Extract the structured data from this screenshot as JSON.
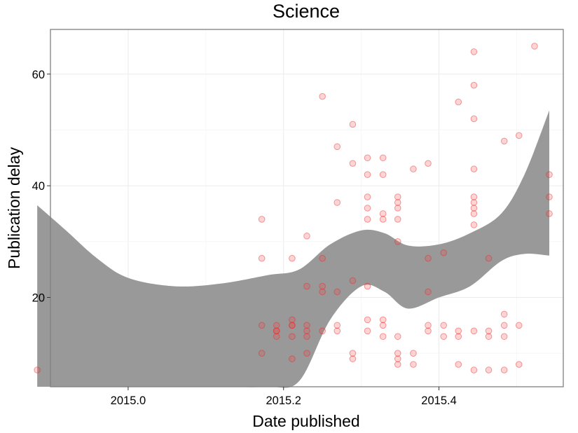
{
  "chart_data": {
    "type": "scatter",
    "title": "Science",
    "xlabel": "Date published",
    "ylabel": "Publication delay",
    "xlim": [
      2014.9,
      2015.56
    ],
    "ylim": [
      4,
      68
    ],
    "x_ticks": [
      2015.0,
      2015.2,
      2015.4
    ],
    "x_tick_labels": [
      "2015.0",
      "2015.2",
      "2015.4"
    ],
    "y_ticks": [
      20,
      40,
      60
    ],
    "y_tick_labels": [
      "20",
      "40",
      "60"
    ],
    "grid": true,
    "legend": "none",
    "colors": {
      "points": "#f8766d",
      "band": "#999999"
    },
    "points": [
      {
        "x": 2014.883,
        "y": 7
      },
      {
        "x": 2015.172,
        "y": 34
      },
      {
        "x": 2015.172,
        "y": 27
      },
      {
        "x": 2015.172,
        "y": 15
      },
      {
        "x": 2015.172,
        "y": 10
      },
      {
        "x": 2015.191,
        "y": 15
      },
      {
        "x": 2015.191,
        "y": 14
      },
      {
        "x": 2015.191,
        "y": 13
      },
      {
        "x": 2015.191,
        "y": 14
      },
      {
        "x": 2015.211,
        "y": 27
      },
      {
        "x": 2015.211,
        "y": 16
      },
      {
        "x": 2015.211,
        "y": 15
      },
      {
        "x": 2015.211,
        "y": 13
      },
      {
        "x": 2015.211,
        "y": 9
      },
      {
        "x": 2015.211,
        "y": 15
      },
      {
        "x": 2015.23,
        "y": 31
      },
      {
        "x": 2015.23,
        "y": 22
      },
      {
        "x": 2015.23,
        "y": 15
      },
      {
        "x": 2015.23,
        "y": 14
      },
      {
        "x": 2015.23,
        "y": 13
      },
      {
        "x": 2015.23,
        "y": 10
      },
      {
        "x": 2015.25,
        "y": 56
      },
      {
        "x": 2015.25,
        "y": 27
      },
      {
        "x": 2015.25,
        "y": 22
      },
      {
        "x": 2015.25,
        "y": 21
      },
      {
        "x": 2015.25,
        "y": 14
      },
      {
        "x": 2015.269,
        "y": 47
      },
      {
        "x": 2015.269,
        "y": 37
      },
      {
        "x": 2015.269,
        "y": 21
      },
      {
        "x": 2015.269,
        "y": 15
      },
      {
        "x": 2015.269,
        "y": 14
      },
      {
        "x": 2015.289,
        "y": 51
      },
      {
        "x": 2015.289,
        "y": 44
      },
      {
        "x": 2015.289,
        "y": 23
      },
      {
        "x": 2015.289,
        "y": 10
      },
      {
        "x": 2015.289,
        "y": 9
      },
      {
        "x": 2015.308,
        "y": 45
      },
      {
        "x": 2015.308,
        "y": 42
      },
      {
        "x": 2015.308,
        "y": 38
      },
      {
        "x": 2015.308,
        "y": 36
      },
      {
        "x": 2015.308,
        "y": 34
      },
      {
        "x": 2015.308,
        "y": 22
      },
      {
        "x": 2015.308,
        "y": 16
      },
      {
        "x": 2015.308,
        "y": 14
      },
      {
        "x": 2015.328,
        "y": 45
      },
      {
        "x": 2015.328,
        "y": 42
      },
      {
        "x": 2015.328,
        "y": 35
      },
      {
        "x": 2015.328,
        "y": 34
      },
      {
        "x": 2015.328,
        "y": 16
      },
      {
        "x": 2015.328,
        "y": 15
      },
      {
        "x": 2015.328,
        "y": 13
      },
      {
        "x": 2015.347,
        "y": 38
      },
      {
        "x": 2015.347,
        "y": 37
      },
      {
        "x": 2015.347,
        "y": 36
      },
      {
        "x": 2015.347,
        "y": 34
      },
      {
        "x": 2015.347,
        "y": 30
      },
      {
        "x": 2015.347,
        "y": 13
      },
      {
        "x": 2015.347,
        "y": 10
      },
      {
        "x": 2015.347,
        "y": 9
      },
      {
        "x": 2015.347,
        "y": 8
      },
      {
        "x": 2015.367,
        "y": 43
      },
      {
        "x": 2015.367,
        "y": 10
      },
      {
        "x": 2015.367,
        "y": 8
      },
      {
        "x": 2015.386,
        "y": 44
      },
      {
        "x": 2015.386,
        "y": 27
      },
      {
        "x": 2015.386,
        "y": 21
      },
      {
        "x": 2015.386,
        "y": 15
      },
      {
        "x": 2015.386,
        "y": 14
      },
      {
        "x": 2015.406,
        "y": 28
      },
      {
        "x": 2015.406,
        "y": 15
      },
      {
        "x": 2015.406,
        "y": 13
      },
      {
        "x": 2015.425,
        "y": 55
      },
      {
        "x": 2015.425,
        "y": 14
      },
      {
        "x": 2015.425,
        "y": 13
      },
      {
        "x": 2015.425,
        "y": 8
      },
      {
        "x": 2015.445,
        "y": 64
      },
      {
        "x": 2015.445,
        "y": 58
      },
      {
        "x": 2015.445,
        "y": 52
      },
      {
        "x": 2015.445,
        "y": 43
      },
      {
        "x": 2015.445,
        "y": 38
      },
      {
        "x": 2015.445,
        "y": 37
      },
      {
        "x": 2015.445,
        "y": 36
      },
      {
        "x": 2015.445,
        "y": 35
      },
      {
        "x": 2015.445,
        "y": 33
      },
      {
        "x": 2015.445,
        "y": 14
      },
      {
        "x": 2015.445,
        "y": 7
      },
      {
        "x": 2015.464,
        "y": 27
      },
      {
        "x": 2015.464,
        "y": 14
      },
      {
        "x": 2015.464,
        "y": 13
      },
      {
        "x": 2015.464,
        "y": 7
      },
      {
        "x": 2015.484,
        "y": 48
      },
      {
        "x": 2015.484,
        "y": 17
      },
      {
        "x": 2015.484,
        "y": 15
      },
      {
        "x": 2015.484,
        "y": 13
      },
      {
        "x": 2015.484,
        "y": 7
      },
      {
        "x": 2015.503,
        "y": 49
      },
      {
        "x": 2015.503,
        "y": 15
      },
      {
        "x": 2015.503,
        "y": 8
      },
      {
        "x": 2015.523,
        "y": 65
      },
      {
        "x": 2015.542,
        "y": 42
      },
      {
        "x": 2015.542,
        "y": 38
      },
      {
        "x": 2015.542,
        "y": 35
      }
    ],
    "confidence_band": {
      "x": [
        2014.883,
        2014.92,
        2014.96,
        2015.0,
        2015.06,
        2015.12,
        2015.18,
        2015.22,
        2015.26,
        2015.3,
        2015.33,
        2015.36,
        2015.4,
        2015.44,
        2015.48,
        2015.51,
        2015.542
      ],
      "upper": [
        36.5,
        32,
        27,
        23.5,
        22,
        22.5,
        24,
        25,
        29.5,
        32,
        31.5,
        29.3,
        29.5,
        31.5,
        35,
        42,
        53.5
      ],
      "lower": [
        4,
        4,
        4,
        4,
        4,
        4,
        4,
        5,
        16,
        22,
        21,
        18,
        20,
        22,
        26.5,
        27.8,
        27.5
      ]
    }
  }
}
